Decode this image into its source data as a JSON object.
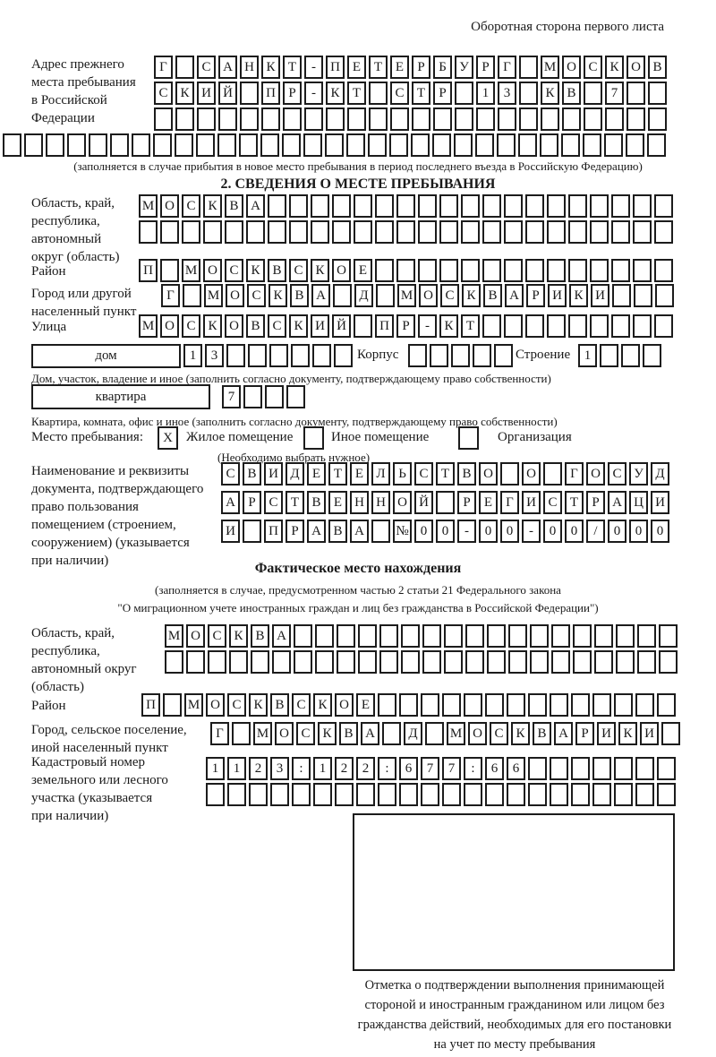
{
  "page": {
    "header_note": "Оборотная сторона первого листа"
  },
  "prev_address": {
    "label_lines": [
      "Адрес прежнего",
      "места пребывания",
      "в Российской",
      "Федерации"
    ],
    "rows": [
      {
        "text": "Г САНКТ-ПЕТЕРБУРГ МОСКОВ",
        "len": 24
      },
      {
        "text": "СКИЙ ПР-КТ СТР 13 КВ 7",
        "len": 24
      },
      {
        "text": "",
        "len": 24
      }
    ],
    "extra_row": {
      "text": "",
      "len": 31
    },
    "note": "(заполняется в случае прибытия в новое место пребывания в период последнего въезда в Российскую Федерацию)"
  },
  "section2": {
    "title": "2. СВЕДЕНИЯ О МЕСТЕ ПРЕБЫВАНИЯ",
    "region": {
      "label_lines": [
        "Область, край,",
        "республика,",
        "автономный",
        "округ (область)"
      ],
      "rows": [
        {
          "text": "МОСКВА",
          "len": 25
        },
        {
          "text": "",
          "len": 25
        }
      ]
    },
    "district": {
      "label": "Район",
      "row": {
        "text": "П МОСКВСКОЕ",
        "len": 25
      }
    },
    "city": {
      "label_lines": [
        "Город или другой",
        "населенный пункт"
      ],
      "row": {
        "text": "Г МОСКВА Д МОСКВАРИКИ",
        "len": 24
      }
    },
    "street": {
      "label": "Улица",
      "row": {
        "text": "МОСКОВСКИЙ ПР-КТ",
        "len": 25
      }
    },
    "house": {
      "label": "дом",
      "cells": {
        "text": "13",
        "len": 8
      },
      "korpus_label": "Корпус",
      "korpus_cells": {
        "text": "",
        "len": 5
      },
      "stroenie_label": "Строение",
      "stroenie_cells": {
        "text": "1",
        "len": 4
      },
      "note": "Дом, участок, владение и иное (заполнить согласно документу, подтверждающему право собственности)"
    },
    "apartment": {
      "label": "квартира",
      "cells": {
        "text": "7",
        "len": 4
      },
      "note": "Квартира, комната, офис и иное (заполнить согласно документу, подтверждающему право собственности)"
    },
    "stay_type": {
      "label": "Место пребывания:",
      "options": [
        {
          "label": "Жилое помещение",
          "mark": "X"
        },
        {
          "label": "Иное помещение",
          "mark": ""
        },
        {
          "label": "Организация",
          "mark": ""
        }
      ],
      "note": "(Необходимо выбрать нужное)"
    },
    "document": {
      "label_lines": [
        "Наименование и реквизиты",
        "документа, подтверждающего",
        "право пользования",
        "помещением (строением,",
        "сооружением) (указывается",
        "при наличии)"
      ],
      "rows": [
        {
          "text": "СВИДЕТЕЛЬСТВО О ГОСУД",
          "len": 21
        },
        {
          "text": "АРСТВЕННОЙ РЕГИСТРАЦИ",
          "len": 21
        },
        {
          "text": "И ПРАВА №00-00-00/000",
          "len": 21
        }
      ]
    }
  },
  "actual": {
    "title": "Фактическое место нахождения",
    "note_lines": [
      "(заполняется в случае, предусмотренном частью 2 статьи 21 Федерального закона",
      "\"О миграционном учете иностранных граждан и лиц без гражданства в Российской Федерации\")"
    ],
    "region": {
      "label_lines": [
        "Область, край,",
        "республика,",
        "автономный округ",
        "(область)"
      ],
      "rows": [
        {
          "text": "МОСКВА",
          "len": 24
        },
        {
          "text": "",
          "len": 24
        }
      ]
    },
    "district": {
      "label": "Район",
      "row": {
        "text": "П МОСКВСКОЕ",
        "len": 25
      }
    },
    "city": {
      "label_lines": [
        "Город, сельское поселение,",
        "иной населенный пункт"
      ],
      "row": {
        "text": "Г МОСКВА Д МОСКВАРИКИ",
        "len": 22
      }
    },
    "cadastral": {
      "label_lines": [
        "Кадастровый номер",
        "земельного или лесного",
        "участка (указывается",
        "при наличии)"
      ],
      "rows": [
        {
          "text": "1123:122:677:66",
          "len": 22
        },
        {
          "text": "",
          "len": 22
        }
      ]
    }
  },
  "stamp": {
    "caption_lines": [
      "Отметка о подтверждении выполнения принимающей",
      "стороной и иностранным гражданином или лицом без",
      "гражданства действий, необходимых для его постановки",
      "на учет по месту пребывания"
    ]
  }
}
